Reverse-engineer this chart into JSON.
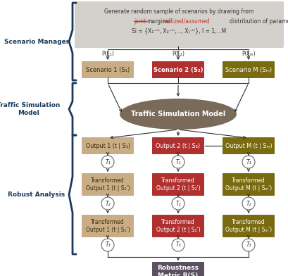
{
  "title_box_bg": "#d4d0cb",
  "scenario_boxes": [
    {
      "text": "Scenario 1 (S₁)",
      "bg": "#c8ad87",
      "text_color": "#3d2b00"
    },
    {
      "text": "Scenario 2 (S₂)",
      "bg": "#b03030",
      "text_color": "white"
    },
    {
      "text": "Scenario M (Sₘ)",
      "bg": "#7a6a10",
      "text_color": "white"
    }
  ],
  "ellipse_bg": "#7a6a5a",
  "ellipse_text": "Traffic Simulation Model",
  "output_boxes": [
    {
      "text": "Output 1 (t | S₁)",
      "bg": "#c8ad87",
      "text_color": "#3d2b00"
    },
    {
      "text": "Output 2 (t | S₂)",
      "bg": "#b03030",
      "text_color": "white"
    },
    {
      "text": "Output M (t | Sₘ)",
      "bg": "#7a6a10",
      "text_color": "white"
    }
  ],
  "transform1_boxes": [
    {
      "text": "Transformed\nOutput 1 (t | S₁')",
      "bg": "#c8ad87",
      "text_color": "#3d2b00"
    },
    {
      "text": "Transformed\nOutput 2 (t | S₂')",
      "bg": "#b03030",
      "text_color": "white"
    },
    {
      "text": "Transformed\nOutput M (t | Sₘ')",
      "bg": "#7a6a10",
      "text_color": "white"
    }
  ],
  "transform2_boxes": [
    {
      "text": "Transformed\nOutput 1 (t | S₁')",
      "bg": "#c8ad87",
      "text_color": "#3d2b00"
    },
    {
      "text": "Transformed\nOutput 2 (t | S₂')",
      "bg": "#b03030",
      "text_color": "white"
    },
    {
      "text": "Transformed\nOutput M (t | Sₘ')",
      "bg": "#7a6a10",
      "text_color": "white"
    }
  ],
  "robustness_bg": "#5a5060",
  "robustness_text": "Robustness\nMetric R(S)",
  "brace_color": "#1a3a5a",
  "label_color": "#1a3a5a",
  "arrow_color": "#333333"
}
